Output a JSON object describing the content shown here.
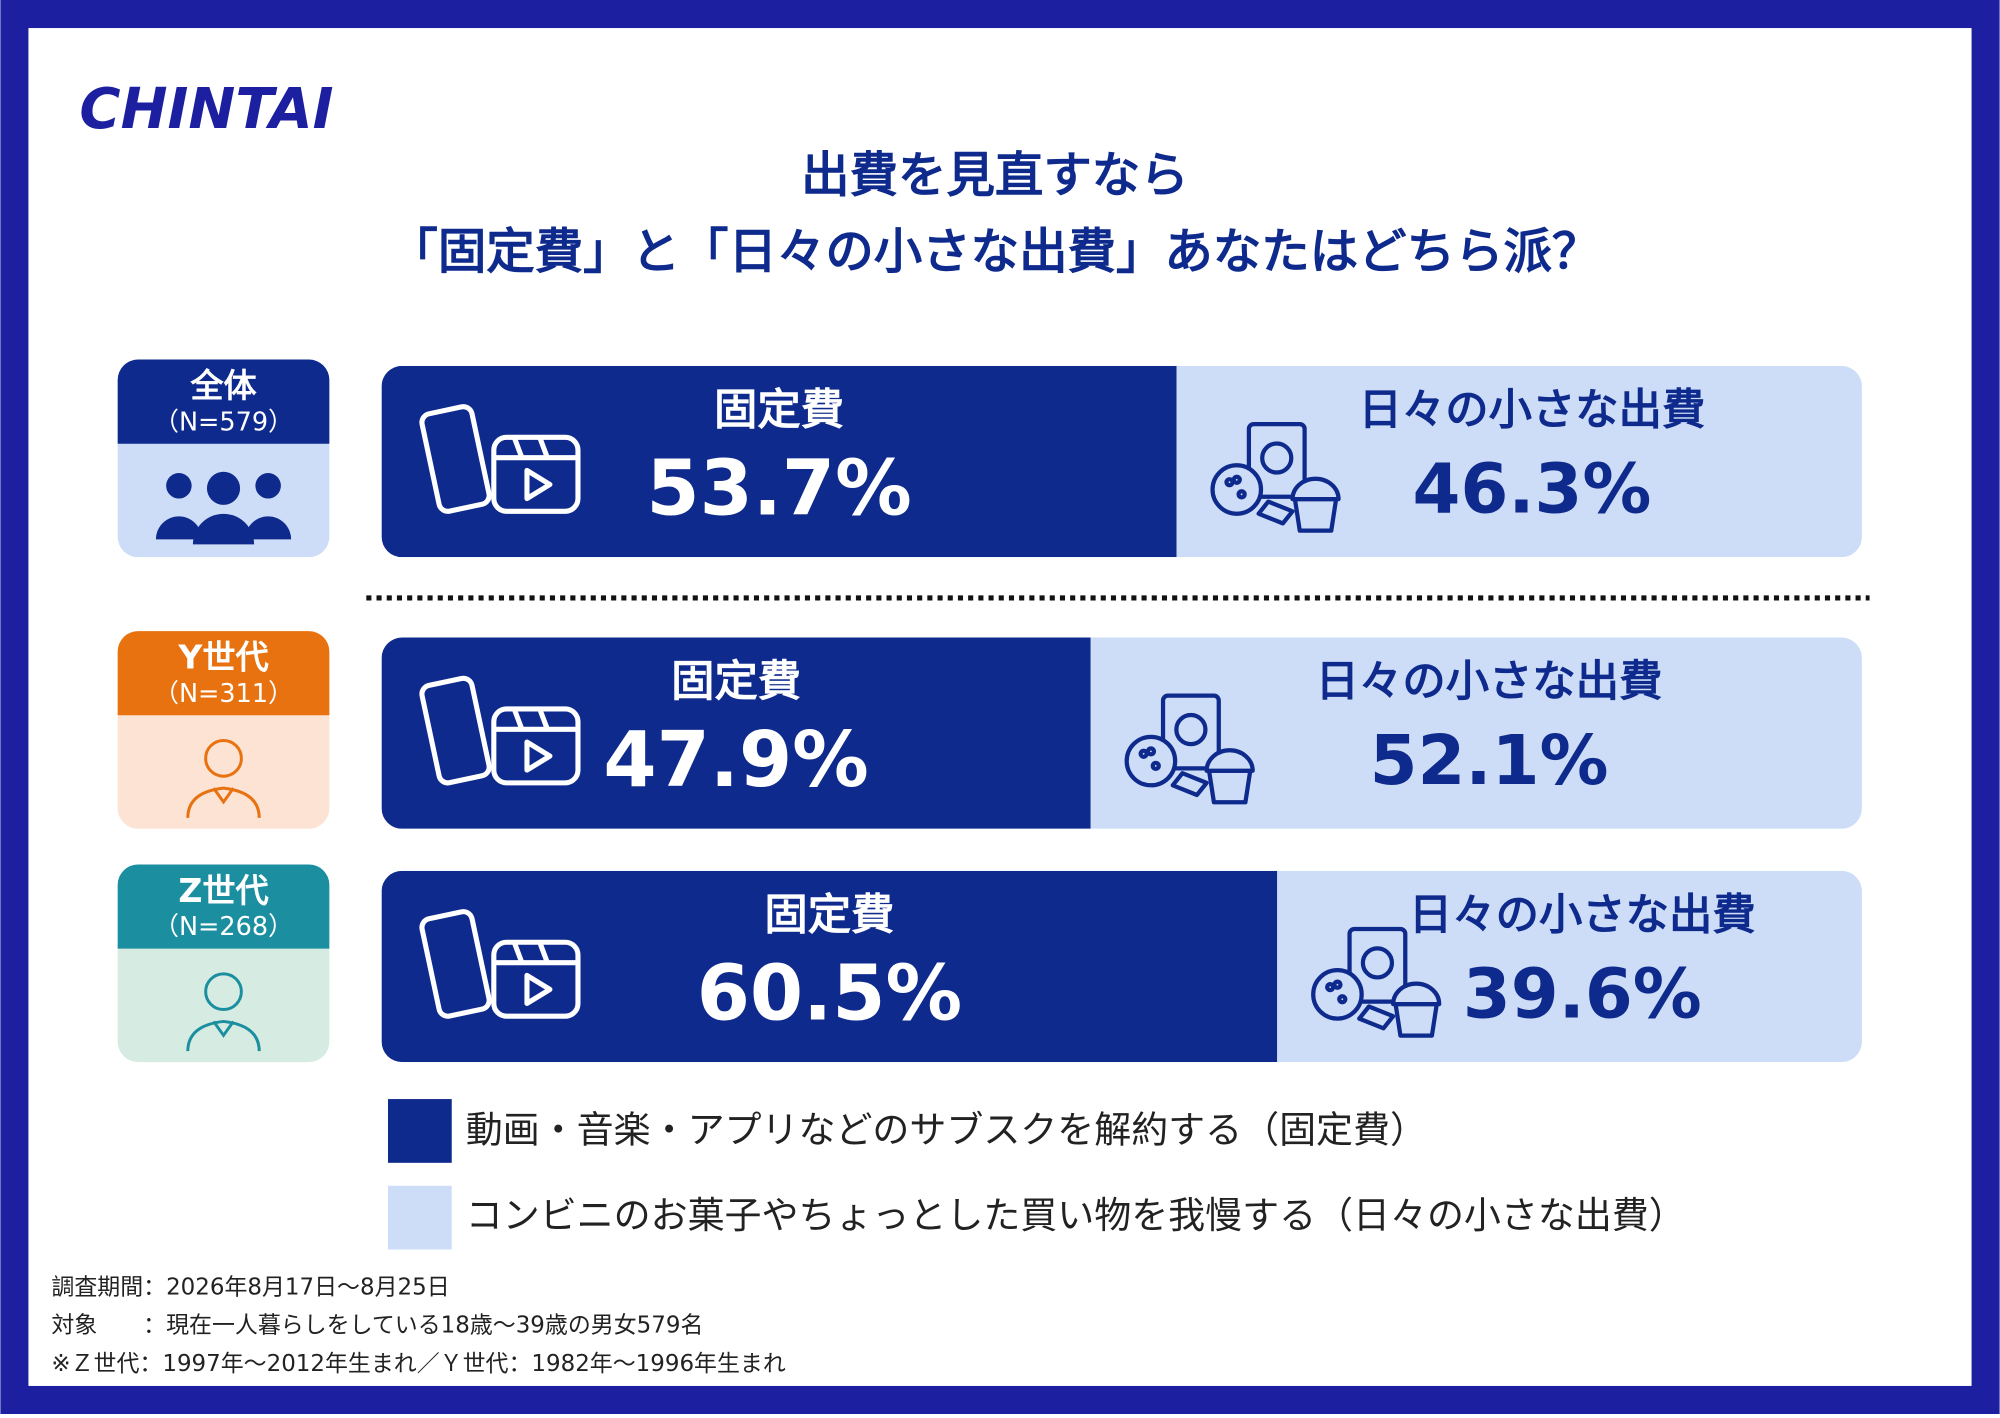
{
  "logo": "CHINTAI",
  "chart_data": {
    "type": "bar",
    "orientation": "horizontal",
    "stacked": true,
    "title": [
      "出費を見直すなら",
      "「固定費」と「日々の小さな出費」あなたはどちら派？"
    ],
    "categories": [
      "全体",
      "Y世代",
      "Z世代"
    ],
    "sample_sizes": [
      "（N=579）",
      "（N=311）",
      "（N=268）"
    ],
    "category_colors": [
      "#0e2a8c",
      "#e8720f",
      "#1b8ea0"
    ],
    "category_tints": [
      "#cdddf7",
      "#fde3d3",
      "#d6ece3"
    ],
    "xlim": [
      0,
      100
    ],
    "series": [
      {
        "name": "動画・音楽・アプリなどのサブスクを解約する（固定費）",
        "label": "固定費",
        "color": "#0e2a8c",
        "text_color": "#ffffff",
        "values": [
          53.7,
          47.9,
          60.5
        ],
        "value_labels": [
          "53.7%",
          "47.9%",
          "60.5%"
        ]
      },
      {
        "name": "コンビニのお菓子やちょっとした買い物を我慢する（日々の小さな出費）",
        "label": "日々の小さな出費",
        "color": "#cdddf7",
        "text_color": "#0e2a8c",
        "values": [
          46.3,
          52.1,
          39.6
        ],
        "value_labels": [
          "46.3%",
          "52.1%",
          "39.6%"
        ]
      }
    ]
  },
  "notes": [
    "調査期間：2026年8月17日〜8月25日",
    "対象　　：現在一人暮らしをしている18歳〜39歳の男女579名",
    "※Ｚ世代：1997年〜2012年生まれ／Ｙ世代：1982年〜1996年生まれ"
  ]
}
